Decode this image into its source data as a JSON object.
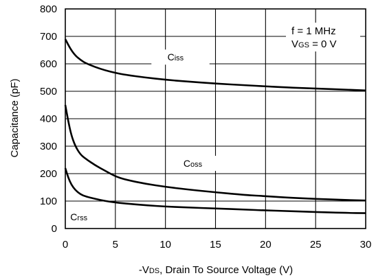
{
  "chart_data": {
    "type": "line",
    "title": "",
    "xlabel": "-VDS, Drain To Source Voltage (V)",
    "xlabel_parts": {
      "prefix": "-V",
      "subscript": "DS",
      "rest": ", Drain To Source Voltage (V)"
    },
    "ylabel": "Capacitance (pF)",
    "xlim": [
      0,
      30
    ],
    "ylim": [
      0,
      800
    ],
    "x_ticks": [
      "0",
      "5",
      "10",
      "15",
      "20",
      "25",
      "30"
    ],
    "y_ticks": [
      "0",
      "100",
      "200",
      "300",
      "400",
      "500",
      "600",
      "700",
      "800"
    ],
    "grid": true,
    "line_color": "#000000",
    "conditions": {
      "line1": "f = 1 MHz",
      "line2_prefix": "V",
      "line2_sub": "GS",
      "line2_rest": " = 0 V"
    },
    "series": [
      {
        "name": "Ciss",
        "label_main": "C",
        "label_sub": "iss",
        "x": [
          0,
          0.5,
          1,
          1.5,
          2,
          3,
          4,
          5,
          6,
          8,
          10,
          12,
          15,
          18,
          20,
          22,
          25,
          28,
          30
        ],
        "values": [
          690,
          655,
          630,
          615,
          603,
          588,
          576,
          567,
          560,
          550,
          542,
          536,
          528,
          522,
          518,
          514,
          510,
          506,
          503
        ]
      },
      {
        "name": "Coss",
        "label_main": "C",
        "label_sub": "oss",
        "x": [
          0,
          0.3,
          0.6,
          1,
          1.5,
          2,
          3,
          4,
          5,
          6,
          8,
          10,
          12,
          15,
          18,
          20,
          22,
          25,
          28,
          30
        ],
        "values": [
          450,
          390,
          340,
          300,
          270,
          255,
          230,
          210,
          190,
          178,
          163,
          152,
          143,
          132,
          122,
          118,
          113,
          108,
          104,
          102
        ]
      },
      {
        "name": "Crss",
        "label_main": "C",
        "label_sub": "rss",
        "x": [
          0,
          0.3,
          0.6,
          1,
          1.5,
          2,
          3,
          4,
          5,
          6,
          8,
          10,
          12,
          15,
          18,
          20,
          22,
          25,
          28,
          30
        ],
        "values": [
          220,
          185,
          160,
          140,
          125,
          117,
          108,
          100,
          95,
          91,
          85,
          80,
          77,
          73,
          69,
          66,
          64,
          60,
          57,
          56
        ]
      }
    ]
  }
}
